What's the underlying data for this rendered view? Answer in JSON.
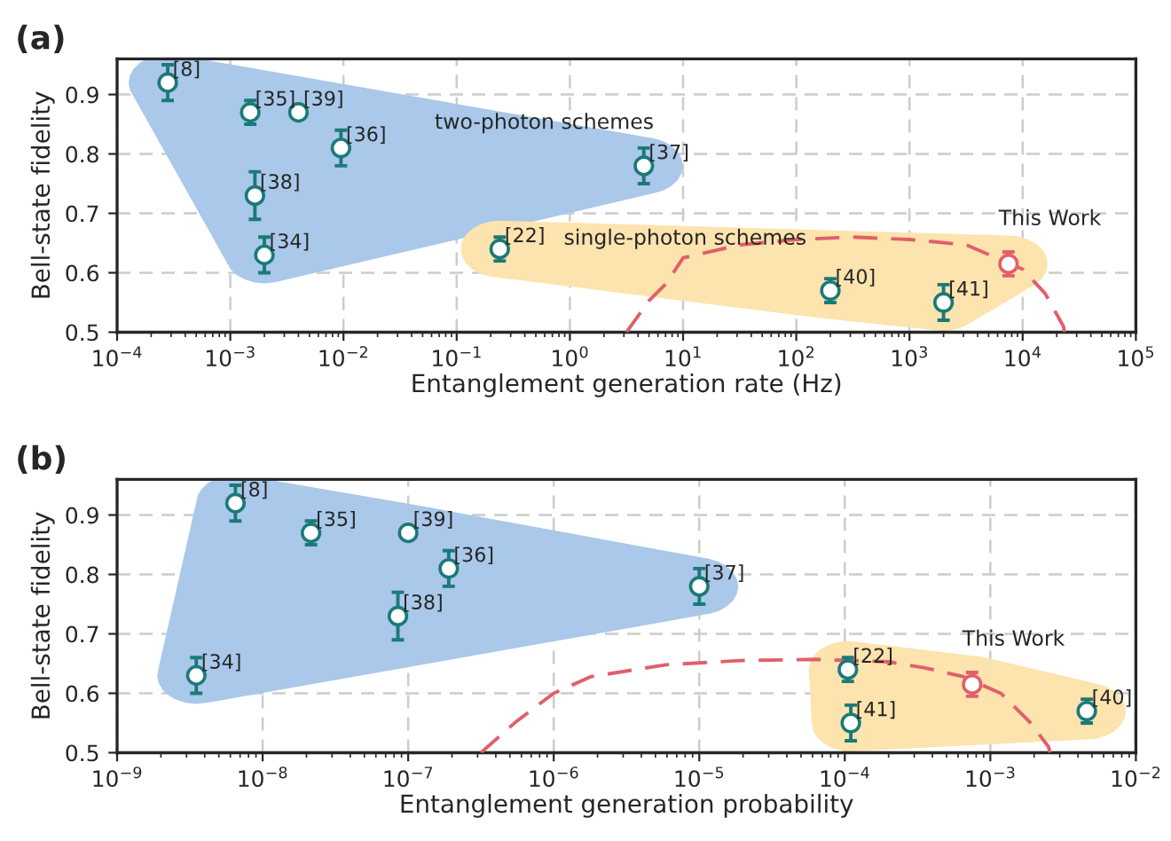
{
  "chart_data": [
    {
      "type": "scatter",
      "title": "(a)",
      "xlabel": "Entanglement generation rate (Hz)",
      "ylabel": "Bell-state fidelity",
      "log": "x",
      "grid": true,
      "legend": false,
      "marker": "circle",
      "xlim": [
        0.0001,
        100000
      ],
      "xticks": [
        {
          "value": 0.0001,
          "label": "10$^{−4}$"
        },
        {
          "value": 0.001,
          "label": "10$^{−3}$"
        },
        {
          "value": 0.01,
          "label": "10$^{−2}$"
        },
        {
          "value": 0.1,
          "label": "10$^{−1}$"
        },
        {
          "value": 1,
          "label": "10$^{0}$"
        },
        {
          "value": 10,
          "label": "10$^{1}$"
        },
        {
          "value": 100,
          "label": "10$^{2}$"
        },
        {
          "value": 1000,
          "label": "10$^{3}$"
        },
        {
          "value": 10000,
          "label": "10$^{4}$"
        },
        {
          "value": 100000,
          "label": "10$^{5}$"
        }
      ],
      "ylim": [
        0.5,
        0.96
      ],
      "yticks": [
        0.5,
        0.6,
        0.7,
        0.8,
        0.9
      ],
      "series": [
        {
          "name": "two-photon schemes",
          "color": "#1b7a78",
          "x": [
            0.0095,
            0.00028,
            0.0015,
            0.004,
            0.00165,
            0.002,
            4.5
          ],
          "values": [
            0.81,
            0.92,
            0.87,
            0.87,
            0.73,
            0.63,
            0.78
          ],
          "errors": [
            0.03,
            0.03,
            0.02,
            null,
            0.04,
            0.03,
            0.03
          ]
        },
        {
          "name": "single-photon schemes",
          "color": "#1b7a78",
          "x": [
            0.24,
            200,
            2000
          ],
          "values": [
            0.64,
            0.57,
            0.55
          ],
          "errors": [
            0.02,
            0.02,
            0.03
          ]
        },
        {
          "name": "This Work",
          "color": "#e0606a",
          "x": [
            7500
          ],
          "values": [
            0.615
          ],
          "errors": [
            0.02
          ]
        },
        {
          "type": "line",
          "line_style": "dashed",
          "marker": "none",
          "color": "#e0606a",
          "x": [
            3.16,
            5,
            7.1,
            10,
            31.6,
            100,
            316,
            1000,
            3160,
            10000,
            15800,
            22900,
            23400
          ],
          "values": [
            0.5,
            0.553,
            0.582,
            0.625,
            0.647,
            0.656,
            0.66,
            0.656,
            0.647,
            0.606,
            0.565,
            0.51,
            0.5
          ]
        }
      ],
      "annotations": [
        {
          "text": "[36]",
          "x": 0.0095,
          "y": 0.81
        },
        {
          "text": "[8]",
          "x": 0.00028,
          "y": 0.92
        },
        {
          "text": "[35]",
          "x": 0.0015,
          "y": 0.87
        },
        {
          "text": "[39]",
          "x": 0.004,
          "y": 0.87
        },
        {
          "text": "[38]",
          "x": 0.00165,
          "y": 0.73
        },
        {
          "text": "[34]",
          "x": 0.002,
          "y": 0.63
        },
        {
          "text": "[37]",
          "x": 4.5,
          "y": 0.78
        },
        {
          "text": "[22]",
          "x": 0.24,
          "y": 0.64
        },
        {
          "text": "[40]",
          "x": 200,
          "y": 0.57
        },
        {
          "text": "[41]",
          "x": 2000,
          "y": 0.55
        }
      ]
    },
    {
      "type": "scatter",
      "title": "(b)",
      "xlabel": "Entanglement generation probability",
      "ylabel": "Bell-state fidelity",
      "log": "x",
      "grid": true,
      "legend": false,
      "marker": "circle",
      "xlim": [
        1e-09,
        0.01
      ],
      "xticks": [
        {
          "value": 1e-09,
          "label": "10$^{−9}$"
        },
        {
          "value": 1e-08,
          "label": "10$^{−8}$"
        },
        {
          "value": 1e-07,
          "label": "10$^{−7}$"
        },
        {
          "value": 1e-06,
          "label": "10$^{−6}$"
        },
        {
          "value": 1e-05,
          "label": "10$^{−5}$"
        },
        {
          "value": 0.0001,
          "label": "10$^{−4}$"
        },
        {
          "value": 0.001,
          "label": "10$^{−3}$"
        },
        {
          "value": 0.01,
          "label": "10$^{−2}$"
        }
      ],
      "ylim": [
        0.5,
        0.96
      ],
      "yticks": [
        0.5,
        0.6,
        0.7,
        0.8,
        0.9
      ],
      "series": [
        {
          "color": "#1b7a78",
          "x": [
            1.9e-07,
            6.5e-09,
            2.15e-08,
            1e-07,
            8.5e-08,
            3.5e-09,
            1e-05
          ],
          "values": [
            0.81,
            0.92,
            0.87,
            0.87,
            0.73,
            0.63,
            0.78
          ],
          "errors": [
            0.03,
            0.03,
            0.02,
            null,
            0.04,
            0.03,
            0.03
          ]
        },
        {
          "color": "#1b7a78",
          "x": [
            0.000105,
            0.00011,
            0.0046
          ],
          "values": [
            0.64,
            0.55,
            0.57
          ],
          "errors": [
            0.02,
            0.03,
            0.02
          ]
        },
        {
          "name": "This Work",
          "color": "#e0606a",
          "x": [
            0.00075
          ],
          "values": [
            0.615
          ],
          "errors": [
            0.02
          ]
        },
        {
          "type": "line",
          "line_style": "dashed",
          "marker": "none",
          "color": "#e0606a",
          "x": [
            3.16e-07,
            5.5e-07,
            1e-06,
            1.8e-06,
            5.9e-06,
            1.9e-05,
            6.2e-05,
            0.0002,
            0.00035,
            0.00065,
            0.00118,
            0.00186,
            0.00251,
            0.00257
          ],
          "values": [
            0.5,
            0.552,
            0.6,
            0.628,
            0.648,
            0.655,
            0.657,
            0.653,
            0.643,
            0.628,
            0.6,
            0.552,
            0.51,
            0.5
          ]
        }
      ],
      "annotations": [
        {
          "text": "[36]",
          "x": 1.9e-07,
          "y": 0.81
        },
        {
          "text": "[8]",
          "x": 6.5e-09,
          "y": 0.92
        },
        {
          "text": "[35]",
          "x": 2.15e-08,
          "y": 0.87
        },
        {
          "text": "[39]",
          "x": 1e-07,
          "y": 0.87
        },
        {
          "text": "[38]",
          "x": 8.5e-08,
          "y": 0.73
        },
        {
          "text": "[34]",
          "x": 3.5e-09,
          "y": 0.63
        },
        {
          "text": "[37]",
          "x": 1e-05,
          "y": 0.78
        },
        {
          "text": "[22]",
          "x": 0.000105,
          "y": 0.64
        },
        {
          "text": "[41]",
          "x": 0.00011,
          "y": 0.55
        },
        {
          "text": "[40]",
          "x": 0.0046,
          "y": 0.57
        }
      ]
    }
  ]
}
